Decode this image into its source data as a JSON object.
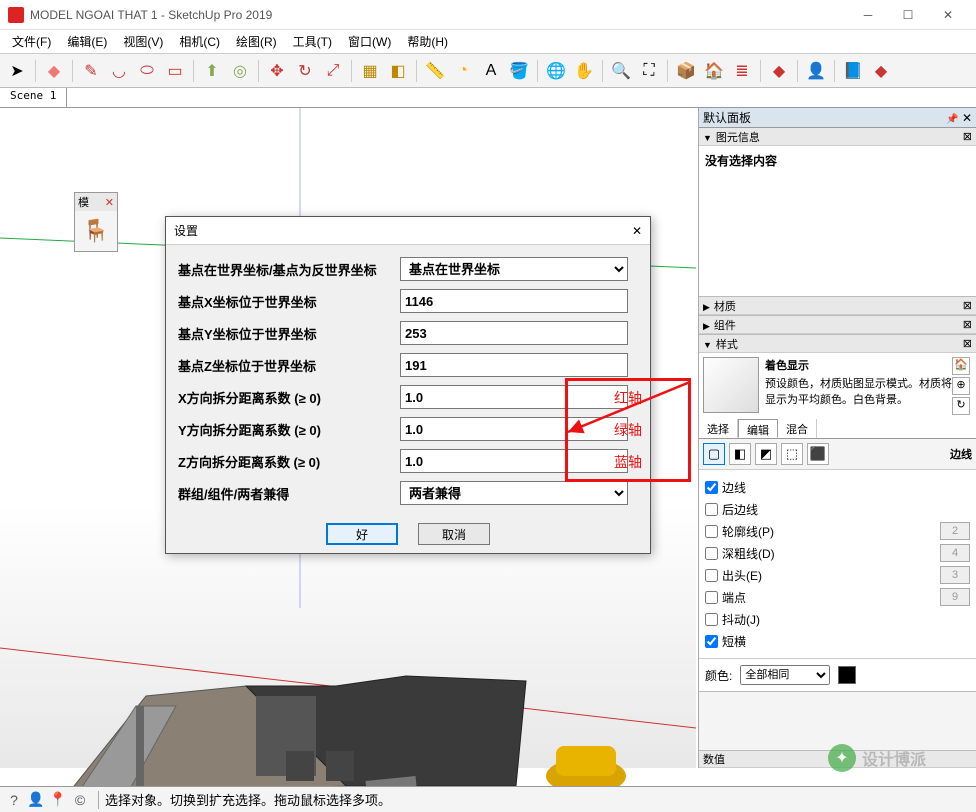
{
  "window": {
    "title": "MODEL NGOAI THAT 1 - SketchUp Pro 2019"
  },
  "menu": [
    "文件(F)",
    "编辑(E)",
    "视图(V)",
    "相机(C)",
    "绘图(R)",
    "工具(T)",
    "窗口(W)",
    "帮助(H)"
  ],
  "scene_tab": "Scene 1",
  "palette": {
    "title": "模",
    "close": "✕"
  },
  "dialog": {
    "title": "设置",
    "rows": [
      {
        "label": "基点在世界坐标/基点为反世界坐标",
        "type": "select",
        "value": "基点在世界坐标"
      },
      {
        "label": "基点X坐标位于世界坐标",
        "type": "text",
        "value": "1146"
      },
      {
        "label": "基点Y坐标位于世界坐标",
        "type": "text",
        "value": "253"
      },
      {
        "label": "基点Z坐标位于世界坐标",
        "type": "text",
        "value": "191"
      },
      {
        "label": "X方向拆分距离系数 (≥ 0)",
        "type": "text",
        "value": "1.0"
      },
      {
        "label": "Y方向拆分距离系数 (≥ 0)",
        "type": "text",
        "value": "1.0"
      },
      {
        "label": "Z方向拆分距离系数 (≥ 0)",
        "type": "text",
        "value": "1.0"
      },
      {
        "label": "群组/组件/两者兼得",
        "type": "select",
        "value": "两者兼得"
      }
    ],
    "ok": "好",
    "cancel": "取消"
  },
  "annotations": {
    "red_labels": [
      "红轴",
      "绿轴",
      "蓝轴"
    ],
    "color": "#ee1111"
  },
  "rpanel": {
    "header": "默认面板",
    "entity_info": {
      "title": "图元信息",
      "content": "没有选择内容"
    },
    "collapsed": [
      "材质",
      "组件"
    ],
    "styles": {
      "title": "样式",
      "name": "着色显示",
      "desc": "预设颜色，材质贴图显示模式。材质将显示为平均颜色。白色背景。",
      "tabs": [
        "选择",
        "编辑",
        "混合"
      ],
      "active_tab": "编辑",
      "edges_label": "边线",
      "options": [
        {
          "label": "边线",
          "checked": true,
          "val": ""
        },
        {
          "label": "后边线",
          "checked": false,
          "val": ""
        },
        {
          "label": "轮廓线(P)",
          "checked": false,
          "val": "2"
        },
        {
          "label": "深粗线(D)",
          "checked": false,
          "val": "4"
        },
        {
          "label": "出头(E)",
          "checked": false,
          "val": "3"
        },
        {
          "label": "端点",
          "checked": false,
          "val": "9"
        },
        {
          "label": "抖动(J)",
          "checked": false,
          "val": ""
        },
        {
          "label": "短横",
          "checked": true,
          "val": ""
        }
      ],
      "color_label": "颜色:",
      "color_mode": "全部相同",
      "color_value": "#000000",
      "values_label": "数值"
    }
  },
  "status": {
    "text": "选择对象。切换到扩充选择。拖动鼠标选择多项。"
  },
  "watermark": "设计博派",
  "colors": {
    "toolbar_bg": "#f4f4f4",
    "panel_header": "#d8e4ee",
    "red": "#ee1111",
    "blue_axis": "#2255dd",
    "green_axis": "#22aa44",
    "red_axis": "#cc3333"
  }
}
